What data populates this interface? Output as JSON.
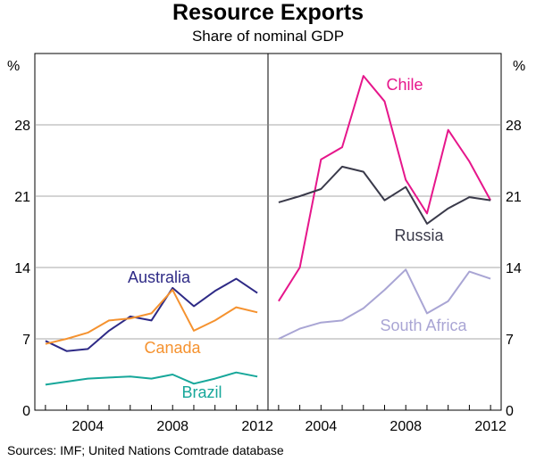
{
  "title": "Resource Exports",
  "subtitle": "Share of nominal GDP",
  "source": "Sources: IMF; United Nations Comtrade database",
  "chart_data": [
    {
      "type": "line",
      "panel": "left",
      "ylabel": "%",
      "ylim": [
        0,
        35
      ],
      "yticks": [
        0,
        7,
        14,
        21,
        28
      ],
      "xlim": [
        2001.5,
        2012.5
      ],
      "xticks": [
        2004,
        2008,
        2012
      ],
      "series": [
        {
          "name": "Australia",
          "color": "#2e2a86",
          "x": [
            2002,
            2003,
            2004,
            2005,
            2006,
            2007,
            2008,
            2009,
            2010,
            2011,
            2012
          ],
          "y": [
            6.8,
            5.8,
            6.0,
            7.8,
            9.2,
            8.8,
            12.0,
            10.2,
            11.7,
            12.9,
            11.5
          ]
        },
        {
          "name": "Canada",
          "color": "#f5922f",
          "x": [
            2002,
            2003,
            2004,
            2005,
            2006,
            2007,
            2008,
            2009,
            2010,
            2011,
            2012
          ],
          "y": [
            6.5,
            7.0,
            7.6,
            8.8,
            9.0,
            9.5,
            11.8,
            7.8,
            8.8,
            10.1,
            9.6
          ]
        },
        {
          "name": "Brazil",
          "color": "#17a79a",
          "x": [
            2002,
            2003,
            2004,
            2005,
            2006,
            2007,
            2008,
            2009,
            2010,
            2011,
            2012
          ],
          "y": [
            2.5,
            2.8,
            3.1,
            3.2,
            3.3,
            3.1,
            3.5,
            2.6,
            3.1,
            3.7,
            3.3
          ]
        }
      ]
    },
    {
      "type": "line",
      "panel": "right",
      "ylabel": "%",
      "ylim": [
        0,
        35
      ],
      "yticks": [
        0,
        7,
        14,
        21,
        28
      ],
      "xlim": [
        2001.5,
        2012.5
      ],
      "xticks": [
        2004,
        2008,
        2012
      ],
      "series": [
        {
          "name": "Chile",
          "color": "#e6168b",
          "x": [
            2002,
            2003,
            2004,
            2005,
            2006,
            2007,
            2008,
            2009,
            2010,
            2011,
            2012
          ],
          "y": [
            10.7,
            14.0,
            24.6,
            25.8,
            32.8,
            30.3,
            22.6,
            19.3,
            27.5,
            24.4,
            20.6
          ]
        },
        {
          "name": "Russia",
          "color": "#3a3a4a",
          "x": [
            2002,
            2003,
            2004,
            2005,
            2006,
            2007,
            2008,
            2009,
            2010,
            2011,
            2012
          ],
          "y": [
            20.4,
            21.0,
            21.7,
            23.9,
            23.4,
            20.6,
            21.9,
            18.3,
            19.8,
            20.9,
            20.6
          ]
        },
        {
          "name": "South Africa",
          "color": "#a9a5d4",
          "x": [
            2002,
            2003,
            2004,
            2005,
            2006,
            2007,
            2008,
            2009,
            2010,
            2011,
            2012
          ],
          "y": [
            7.0,
            8.0,
            8.6,
            8.8,
            10.0,
            11.8,
            13.8,
            9.5,
            10.7,
            13.6,
            12.9
          ]
        }
      ]
    }
  ]
}
